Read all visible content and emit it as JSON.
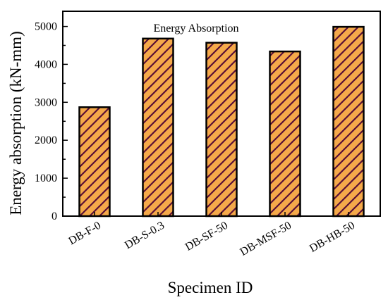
{
  "chart_data": {
    "type": "bar",
    "title": "Energy Absorption",
    "xlabel": "Specimen ID",
    "ylabel": "Energy absorption (kN-mm)",
    "categories": [
      "DB-F-0",
      "DB-S-0.3",
      "DB-SF-50",
      "DB-MSF-50",
      "DB-HB-50"
    ],
    "values": [
      2870,
      4680,
      4570,
      4340,
      4990
    ],
    "ylim": [
      0,
      5400
    ],
    "yticks": [
      0,
      1000,
      2000,
      3000,
      4000,
      5000
    ],
    "grid": false,
    "legend": "none",
    "bar_fill": "#F5A94A",
    "bar_edge": "#000000",
    "hatch_color": "#5A0F35",
    "hatch": "diagonal"
  }
}
